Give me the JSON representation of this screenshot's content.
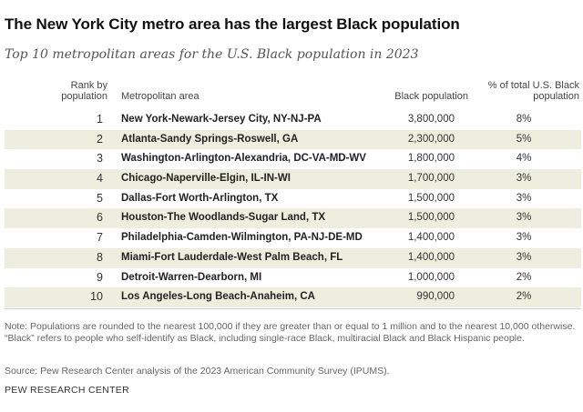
{
  "title": "The New York City metro area has the largest Black population",
  "subtitle": "Top 10 metropolitan areas for the U.S. Black population in 2023",
  "headers": {
    "rank": "Rank by population",
    "metro": "Metropolitan area",
    "population": "Black population",
    "percent": "% of total U.S. Black population"
  },
  "chart_data": {
    "type": "table",
    "columns": [
      "Rank by population",
      "Metropolitan area",
      "Black population",
      "% of total U.S. Black population"
    ],
    "rows": [
      {
        "rank": "1",
        "metro": "New York-Newark-Jersey City, NY-NJ-PA",
        "population": "3,800,000",
        "percent": "8%"
      },
      {
        "rank": "2",
        "metro": "Atlanta-Sandy Springs-Roswell, GA",
        "population": "2,300,000",
        "percent": "5%"
      },
      {
        "rank": "3",
        "metro": "Washington-Arlington-Alexandria, DC-VA-MD-WV",
        "population": "1,800,000",
        "percent": "4%"
      },
      {
        "rank": "4",
        "metro": "Chicago-Naperville-Elgin, IL-IN-WI",
        "population": "1,700,000",
        "percent": "3%"
      },
      {
        "rank": "5",
        "metro": "Dallas-Fort Worth-Arlington, TX",
        "population": "1,500,000",
        "percent": "3%"
      },
      {
        "rank": "6",
        "metro": "Houston-The Woodlands-Sugar Land, TX",
        "population": "1,500,000",
        "percent": "3%"
      },
      {
        "rank": "7",
        "metro": "Philadelphia-Camden-Wilmington, PA-NJ-DE-MD",
        "population": "1,400,000",
        "percent": "3%"
      },
      {
        "rank": "8",
        "metro": "Miami-Fort Lauderdale-West Palm Beach, FL",
        "population": "1,400,000",
        "percent": "3%"
      },
      {
        "rank": "9",
        "metro": "Detroit-Warren-Dearborn, MI",
        "population": "1,000,000",
        "percent": "2%"
      },
      {
        "rank": "10",
        "metro": "Los Angeles-Long Beach-Anaheim, CA",
        "population": "990,000",
        "percent": "2%"
      }
    ]
  },
  "colors": {
    "row_shade": "#eeeedf",
    "title": "#111111",
    "note": "#666666"
  },
  "note": "Note: Populations are rounded to the nearest 100,000 if they are greater than or equal to 1 million and to the nearest 10,000 otherwise. “Black” refers to people who self-identify as Black, including single-race Black, multiracial Black and Black Hispanic people.",
  "source": "Source: Pew Research Center analysis of the 2023 American Community Survey (IPUMS).",
  "org": "PEW RESEARCH CENTER"
}
